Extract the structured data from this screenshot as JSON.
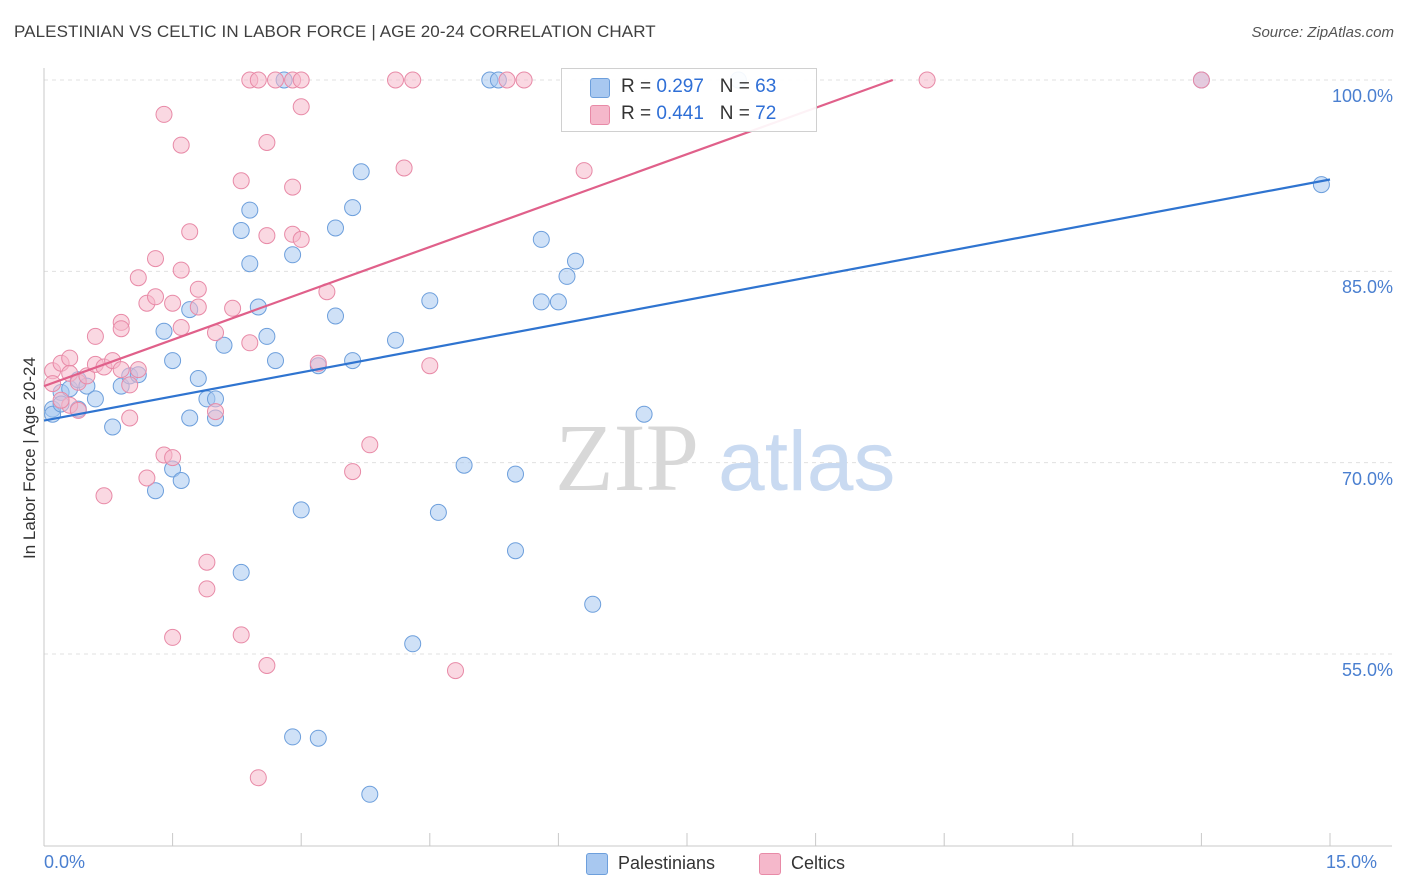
{
  "header": {
    "title": "PALESTINIAN VS CELTIC IN LABOR FORCE | AGE 20-24 CORRELATION CHART",
    "source": "Source: ZipAtlas.com"
  },
  "watermark": {
    "zip": "ZIP",
    "atlas": "atlas"
  },
  "legend": {
    "rows": [
      {
        "r_label": "R = ",
        "r_value": "0.297",
        "n_label": "N = ",
        "n_value": "63",
        "color": "#a8c8f0"
      },
      {
        "r_label": "R = ",
        "r_value": "0.441",
        "n_label": "N = ",
        "n_value": "72",
        "color": "#f5b8cb"
      }
    ]
  },
  "colors": {
    "blue_fill": "#a8c8f0",
    "blue_stroke": "#6d9fdc",
    "blue_line": "#2f74d0",
    "pink_fill": "#f5b8cb",
    "pink_stroke": "#e88aa7",
    "pink_line": "#e0608a",
    "tick_text": "#4a7fd0",
    "grid": "#e0e0e0"
  },
  "chart_data": {
    "type": "scatter",
    "title": "PALESTINIAN VS CELTIC IN LABOR FORCE | AGE 20-24 CORRELATION CHART",
    "xlabel": "",
    "ylabel": "In Labor Force | Age 20-24",
    "xlim": [
      0,
      15
    ],
    "ylim": [
      40,
      101.5
    ],
    "x_tick_labels": [
      "0.0%",
      "15.0%"
    ],
    "y_ticks": [
      100,
      85,
      70,
      55
    ],
    "y_tick_labels": [
      "100.0%",
      "85.0%",
      "70.0%",
      "55.0%"
    ],
    "grid": true,
    "legend_position": "top-center",
    "series": [
      {
        "name": "Palestinians",
        "color": "#a8c8f0",
        "trend": {
          "x": [
            0,
            15
          ],
          "y": [
            73.3,
            92.2
          ]
        },
        "points": [
          [
            0.1,
            74.2
          ],
          [
            0.2,
            75.5
          ],
          [
            0.3,
            75.8
          ],
          [
            0.4,
            76.5
          ],
          [
            0.4,
            74.2
          ],
          [
            0.5,
            76.0
          ],
          [
            0.6,
            75.0
          ],
          [
            0.8,
            72.8
          ],
          [
            0.9,
            76.0
          ],
          [
            1.0,
            76.8
          ],
          [
            1.1,
            76.9
          ],
          [
            1.3,
            67.8
          ],
          [
            1.4,
            80.3
          ],
          [
            1.5,
            78.0
          ],
          [
            1.7,
            82.0
          ],
          [
            1.5,
            69.5
          ],
          [
            1.6,
            68.6
          ],
          [
            1.7,
            73.5
          ],
          [
            1.8,
            76.6
          ],
          [
            1.9,
            75.0
          ],
          [
            2.0,
            73.5
          ],
          [
            2.0,
            75.0
          ],
          [
            2.1,
            79.2
          ],
          [
            2.3,
            61.4
          ],
          [
            2.3,
            88.2
          ],
          [
            2.4,
            89.8
          ],
          [
            2.4,
            85.6
          ],
          [
            2.5,
            82.2
          ],
          [
            2.6,
            79.9
          ],
          [
            2.7,
            78.0
          ],
          [
            2.9,
            86.3
          ],
          [
            2.8,
            100.0
          ],
          [
            2.9,
            48.5
          ],
          [
            3.0,
            66.3
          ],
          [
            3.2,
            77.6
          ],
          [
            3.2,
            48.4
          ],
          [
            3.4,
            88.4
          ],
          [
            3.4,
            81.5
          ],
          [
            3.6,
            90.0
          ],
          [
            3.6,
            78.0
          ],
          [
            3.7,
            92.8
          ],
          [
            3.8,
            44.0
          ],
          [
            4.1,
            79.6
          ],
          [
            4.3,
            55.8
          ],
          [
            4.5,
            82.7
          ],
          [
            4.6,
            66.1
          ],
          [
            4.9,
            69.8
          ],
          [
            5.2,
            100.0
          ],
          [
            5.3,
            100.0
          ],
          [
            5.5,
            63.1
          ],
          [
            5.5,
            69.1
          ],
          [
            5.8,
            87.5
          ],
          [
            5.8,
            82.6
          ],
          [
            6.0,
            82.6
          ],
          [
            6.1,
            84.6
          ],
          [
            6.2,
            85.8
          ],
          [
            6.4,
            58.9
          ],
          [
            7.0,
            73.8
          ],
          [
            8.1,
            100.0
          ],
          [
            13.5,
            100.0
          ],
          [
            14.9,
            91.8
          ],
          [
            0.1,
            73.8
          ],
          [
            0.2,
            74.6
          ]
        ]
      },
      {
        "name": "Celtics",
        "color": "#f5b8cb",
        "trend": {
          "x": [
            0,
            9.9
          ],
          "y": [
            76.0,
            100.0
          ]
        },
        "points": [
          [
            0.1,
            77.2
          ],
          [
            0.1,
            76.2
          ],
          [
            0.2,
            77.8
          ],
          [
            0.3,
            78.2
          ],
          [
            0.3,
            77.0
          ],
          [
            0.3,
            74.5
          ],
          [
            0.4,
            76.3
          ],
          [
            0.4,
            74.1
          ],
          [
            0.5,
            76.8
          ],
          [
            0.6,
            79.9
          ],
          [
            0.6,
            77.7
          ],
          [
            0.7,
            77.5
          ],
          [
            0.7,
            67.4
          ],
          [
            0.8,
            78.0
          ],
          [
            0.9,
            77.3
          ],
          [
            0.9,
            81.0
          ],
          [
            0.9,
            80.5
          ],
          [
            1.0,
            76.1
          ],
          [
            1.0,
            73.5
          ],
          [
            1.1,
            84.5
          ],
          [
            1.1,
            77.3
          ],
          [
            1.2,
            82.5
          ],
          [
            1.2,
            68.8
          ],
          [
            1.3,
            86.0
          ],
          [
            1.3,
            83.0
          ],
          [
            1.4,
            70.6
          ],
          [
            1.5,
            82.5
          ],
          [
            1.4,
            97.3
          ],
          [
            1.5,
            56.3
          ],
          [
            1.5,
            70.4
          ],
          [
            1.6,
            80.6
          ],
          [
            1.6,
            94.9
          ],
          [
            1.6,
            85.1
          ],
          [
            1.7,
            88.1
          ],
          [
            1.8,
            83.6
          ],
          [
            1.8,
            82.2
          ],
          [
            1.9,
            60.1
          ],
          [
            1.9,
            62.2
          ],
          [
            2.0,
            80.2
          ],
          [
            2.0,
            74.0
          ],
          [
            2.2,
            82.1
          ],
          [
            2.3,
            56.5
          ],
          [
            2.3,
            92.1
          ],
          [
            2.4,
            100.0
          ],
          [
            2.4,
            79.4
          ],
          [
            2.5,
            45.3
          ],
          [
            2.5,
            100.0
          ],
          [
            2.6,
            87.8
          ],
          [
            2.6,
            54.1
          ],
          [
            2.6,
            95.1
          ],
          [
            2.7,
            100.0
          ],
          [
            2.9,
            87.9
          ],
          [
            2.9,
            91.6
          ],
          [
            2.9,
            100.0
          ],
          [
            3.0,
            97.9
          ],
          [
            3.0,
            87.5
          ],
          [
            3.0,
            100.0
          ],
          [
            3.2,
            77.8
          ],
          [
            3.3,
            83.4
          ],
          [
            3.6,
            69.3
          ],
          [
            3.8,
            71.4
          ],
          [
            4.1,
            100.0
          ],
          [
            4.2,
            93.1
          ],
          [
            4.3,
            100.0
          ],
          [
            4.5,
            77.6
          ],
          [
            4.8,
            53.7
          ],
          [
            5.4,
            100.0
          ],
          [
            5.6,
            100.0
          ],
          [
            6.3,
            92.9
          ],
          [
            10.3,
            100.0
          ],
          [
            13.5,
            100.0
          ],
          [
            0.2,
            74.9
          ]
        ]
      }
    ]
  },
  "bottom_legend": [
    {
      "label": "Palestinians",
      "color": "#a8c8f0"
    },
    {
      "label": "Celtics",
      "color": "#f5b8cb"
    }
  ]
}
